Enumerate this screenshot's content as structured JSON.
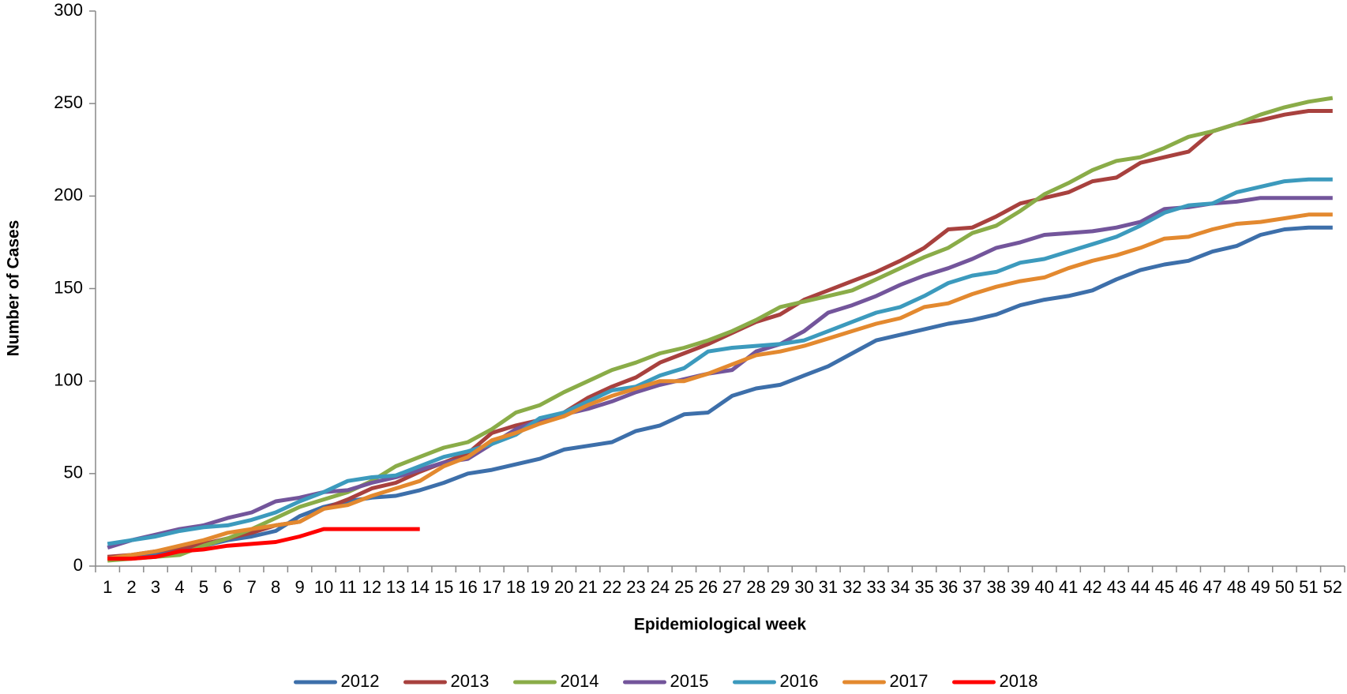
{
  "chart_data": {
    "type": "line",
    "x_label": "Epidemiological week",
    "y_label": "Number of Cases",
    "x": [
      1,
      2,
      3,
      4,
      5,
      6,
      7,
      8,
      9,
      10,
      11,
      12,
      13,
      14,
      15,
      16,
      17,
      18,
      19,
      20,
      21,
      22,
      23,
      24,
      25,
      26,
      27,
      28,
      29,
      30,
      31,
      32,
      33,
      34,
      35,
      36,
      37,
      38,
      39,
      40,
      41,
      42,
      43,
      44,
      45,
      46,
      47,
      48,
      49,
      50,
      51,
      52
    ],
    "ylim": [
      0,
      300
    ],
    "yticks": [
      0,
      50,
      100,
      150,
      200,
      250,
      300
    ],
    "legend": "bottom",
    "series": [
      {
        "name": "2012",
        "color": "#3d6faa",
        "values": [
          4,
          5,
          6,
          9,
          11,
          14,
          16,
          19,
          27,
          32,
          35,
          37,
          38,
          41,
          45,
          50,
          52,
          55,
          58,
          63,
          65,
          67,
          73,
          76,
          82,
          83,
          92,
          96,
          98,
          103,
          108,
          115,
          122,
          125,
          128,
          131,
          133,
          136,
          141,
          144,
          146,
          149,
          155,
          160,
          163,
          165,
          170,
          173,
          179,
          182,
          183,
          183
        ]
      },
      {
        "name": "2013",
        "color": "#a8413e",
        "values": [
          5,
          6,
          8,
          10,
          12,
          15,
          18,
          22,
          24,
          31,
          36,
          42,
          45,
          51,
          56,
          61,
          72,
          76,
          79,
          83,
          91,
          97,
          102,
          110,
          115,
          120,
          126,
          132,
          136,
          144,
          149,
          154,
          159,
          165,
          172,
          182,
          183,
          189,
          196,
          199,
          202,
          208,
          210,
          218,
          221,
          224,
          235,
          239,
          241,
          244,
          246,
          246
        ]
      },
      {
        "name": "2014",
        "color": "#8aac48",
        "values": [
          3,
          4,
          5,
          6,
          11,
          15,
          20,
          26,
          32,
          36,
          40,
          46,
          54,
          59,
          64,
          67,
          74,
          83,
          87,
          94,
          100,
          106,
          110,
          115,
          118,
          122,
          127,
          133,
          140,
          143,
          146,
          149,
          155,
          161,
          167,
          172,
          180,
          184,
          192,
          201,
          207,
          214,
          219,
          221,
          226,
          232,
          235,
          239,
          244,
          248,
          251,
          253
        ]
      },
      {
        "name": "2015",
        "color": "#73559b",
        "values": [
          10,
          14,
          17,
          20,
          22,
          26,
          29,
          35,
          37,
          40,
          41,
          45,
          48,
          52,
          56,
          58,
          66,
          74,
          79,
          82,
          85,
          89,
          94,
          98,
          101,
          104,
          106,
          116,
          120,
          127,
          137,
          141,
          146,
          152,
          157,
          161,
          166,
          172,
          175,
          179,
          180,
          181,
          183,
          186,
          193,
          194,
          196,
          197,
          199,
          199,
          199,
          199
        ]
      },
      {
        "name": "2016",
        "color": "#3c9abd",
        "values": [
          12,
          14,
          16,
          19,
          21,
          22,
          25,
          29,
          35,
          40,
          46,
          48,
          49,
          54,
          59,
          62,
          66,
          71,
          80,
          83,
          89,
          95,
          97,
          103,
          107,
          116,
          118,
          119,
          120,
          122,
          127,
          132,
          137,
          140,
          146,
          153,
          157,
          159,
          164,
          166,
          170,
          174,
          178,
          184,
          191,
          195,
          196,
          202,
          205,
          208,
          209,
          209
        ]
      },
      {
        "name": "2017",
        "color": "#e3892f",
        "values": [
          4,
          6,
          8,
          11,
          14,
          18,
          20,
          22,
          24,
          31,
          33,
          38,
          42,
          46,
          54,
          59,
          68,
          72,
          77,
          81,
          87,
          92,
          96,
          100,
          100,
          104,
          109,
          114,
          116,
          119,
          123,
          127,
          131,
          134,
          140,
          142,
          147,
          151,
          154,
          156,
          161,
          165,
          168,
          172,
          177,
          178,
          182,
          185,
          186,
          188,
          190,
          190
        ]
      },
      {
        "name": "2018",
        "color": "#ff0000",
        "values": [
          4,
          4,
          5,
          8,
          9,
          11,
          12,
          13,
          16,
          20,
          20,
          20,
          20,
          20,
          null,
          null,
          null,
          null,
          null,
          null,
          null,
          null,
          null,
          null,
          null,
          null,
          null,
          null,
          null,
          null,
          null,
          null,
          null,
          null,
          null,
          null,
          null,
          null,
          null,
          null,
          null,
          null,
          null,
          null,
          null,
          null,
          null,
          null,
          null,
          null,
          null,
          null
        ]
      }
    ]
  }
}
